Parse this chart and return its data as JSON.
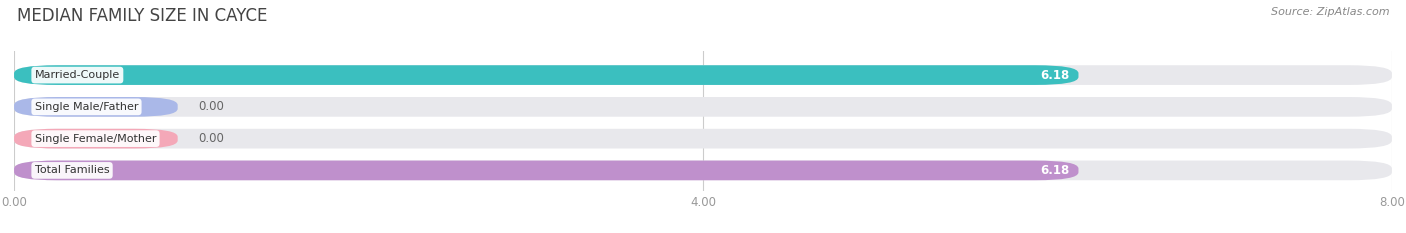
{
  "title": "MEDIAN FAMILY SIZE IN CAYCE",
  "source": "Source: ZipAtlas.com",
  "categories": [
    "Married-Couple",
    "Single Male/Father",
    "Single Female/Mother",
    "Total Families"
  ],
  "values": [
    6.18,
    0.0,
    0.0,
    6.18
  ],
  "bar_colors": [
    "#3bbfbf",
    "#aab8e8",
    "#f4a8b8",
    "#bf90cc"
  ],
  "background_color": "#ffffff",
  "bar_bg_color": "#e8e8ec",
  "xlim": [
    0,
    8.0
  ],
  "xticks": [
    0.0,
    4.0,
    8.0
  ],
  "xtick_labels": [
    "0.00",
    "4.00",
    "8.00"
  ],
  "value_fontsize": 8.5,
  "label_fontsize": 8,
  "title_fontsize": 12,
  "source_fontsize": 8,
  "zero_bar_width": 0.95
}
